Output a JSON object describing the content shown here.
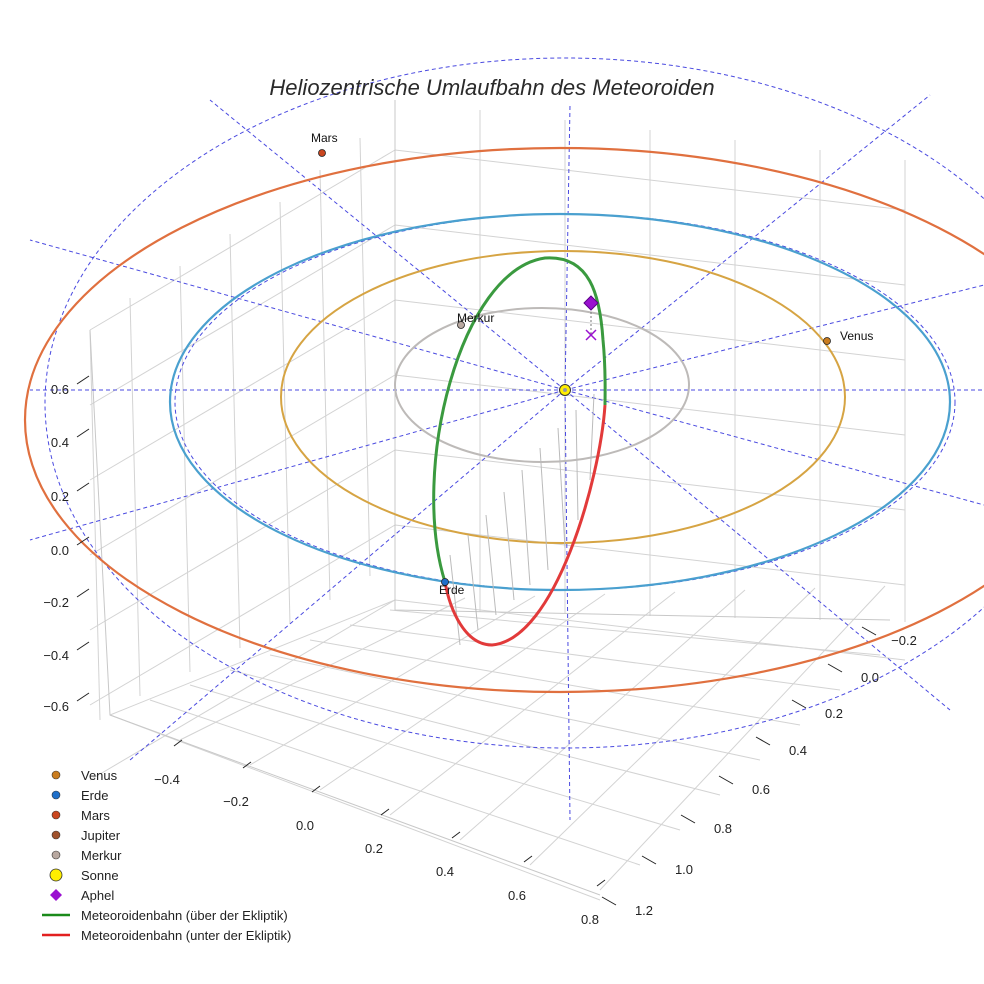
{
  "chart_data": {
    "type": "3d-orbit",
    "title": "Heliozentrische Umlaufbahn des Meteoroiden",
    "z_ticks": [
      "0.6",
      "0.4",
      "0.2",
      "0.0",
      "−0.2",
      "−0.4",
      "−0.6"
    ],
    "x_ticks": [
      "−0.4",
      "−0.2",
      "0.0",
      "0.2",
      "0.4",
      "0.6",
      "0.8"
    ],
    "y_ticks": [
      "−0.2",
      "0.0",
      "0.2",
      "0.4",
      "0.6",
      "0.8",
      "1.0",
      "1.2"
    ],
    "planets": [
      {
        "name": "Venus",
        "label": "Venus",
        "color": "#c97c1f"
      },
      {
        "name": "Erde",
        "label": "Erde",
        "color": "#1f6fc9"
      },
      {
        "name": "Mars",
        "label": "Mars",
        "color": "#c9461f"
      },
      {
        "name": "Merkur",
        "label": "Merkur",
        "color": "#b8a8a0"
      }
    ],
    "orbits": [
      {
        "name": "Merkur",
        "color": "#bdbab8"
      },
      {
        "name": "Venus",
        "color": "#d6a443"
      },
      {
        "name": "Erde",
        "color": "#4aa0cf"
      },
      {
        "name": "Mars",
        "color": "#e0703f"
      }
    ],
    "meteoroid": {
      "above_color": "#3a9a3f",
      "below_color": "#e23a3a",
      "aphel_color": "#9a10d0"
    },
    "legend": [
      {
        "label": "Venus",
        "marker": "dot",
        "color": "#c97c1f"
      },
      {
        "label": "Erde",
        "marker": "dot",
        "color": "#1f6fc9"
      },
      {
        "label": "Mars",
        "marker": "dot",
        "color": "#c9461f"
      },
      {
        "label": "Jupiter",
        "marker": "dot",
        "color": "#a0522d"
      },
      {
        "label": "Merkur",
        "marker": "dot",
        "color": "#b8a8a0"
      },
      {
        "label": "Sonne",
        "marker": "bigdot",
        "color": "#ffee00"
      },
      {
        "label": "Aphel",
        "marker": "diamond",
        "color": "#9a10d0"
      },
      {
        "label": "Meteoroidenbahn (über der Ekliptik)",
        "marker": "line",
        "color": "#1a8a1a"
      },
      {
        "label": "Meteoroidenbahn (unter der Ekliptik)",
        "marker": "line",
        "color": "#e22020"
      }
    ]
  }
}
